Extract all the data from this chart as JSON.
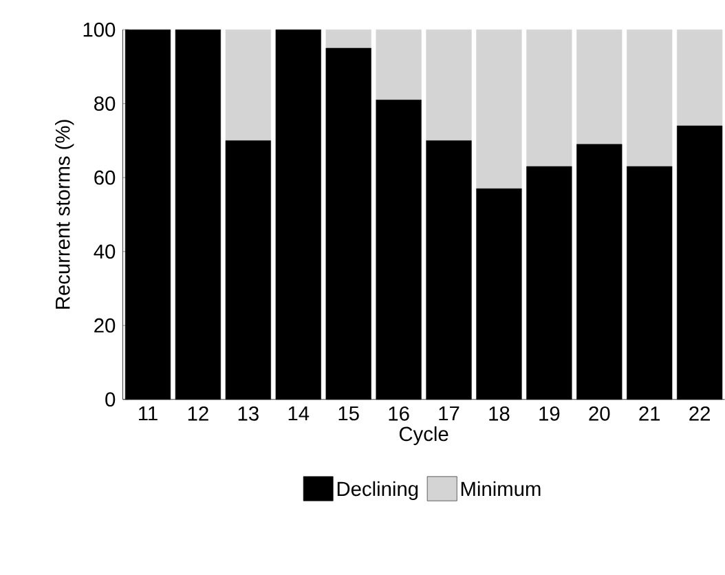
{
  "chart_data": {
    "type": "bar",
    "stacked": true,
    "xlabel": "Cycle",
    "ylabel": "Recurrent storms (%)",
    "categories": [
      "11",
      "12",
      "13",
      "14",
      "15",
      "16",
      "17",
      "18",
      "19",
      "20",
      "21",
      "22"
    ],
    "series": [
      {
        "name": "Declining",
        "color": "#000000",
        "values": [
          100,
          100,
          70,
          100,
          95,
          81,
          70,
          57,
          63,
          69,
          63,
          74
        ]
      },
      {
        "name": "Minimum",
        "color": "#d4d4d4",
        "values": [
          0,
          0,
          30,
          0,
          5,
          19,
          30,
          43,
          37,
          31,
          37,
          26
        ]
      }
    ],
    "ylim": [
      0,
      100
    ],
    "yticks": [
      0,
      20,
      40,
      60,
      80,
      100
    ],
    "legend": "bottom"
  }
}
